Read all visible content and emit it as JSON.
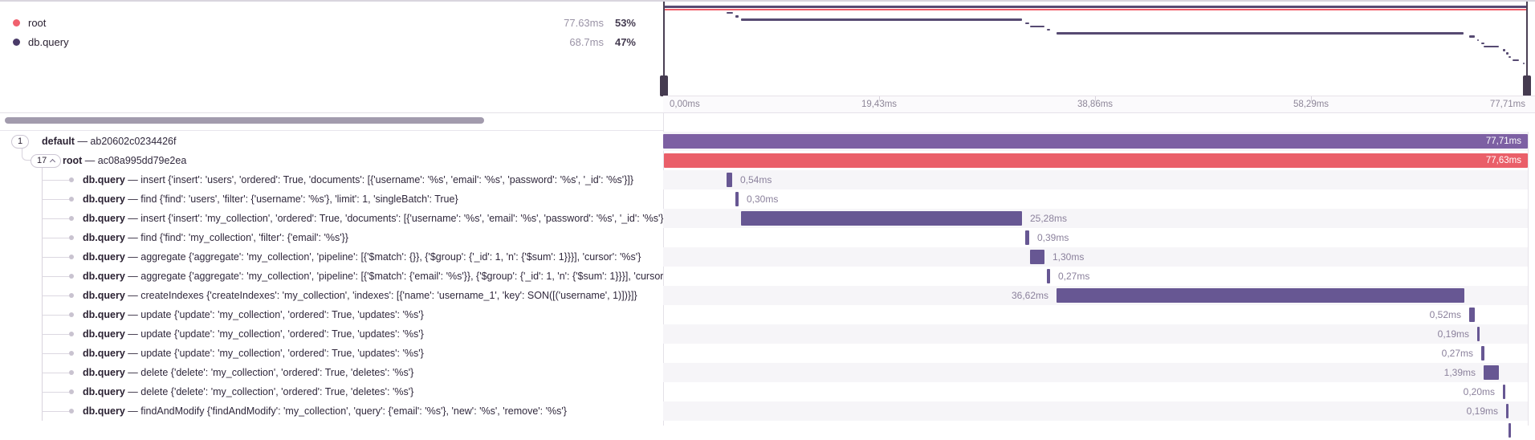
{
  "legend": {
    "items": [
      {
        "label": "root",
        "duration": "77.63ms",
        "percent": "53%",
        "color": "#f0616e"
      },
      {
        "label": "db.query",
        "duration": "68.7ms",
        "percent": "47%",
        "color": "#4a3b69"
      }
    ]
  },
  "axis": {
    "ticks": [
      {
        "label": "0,00ms"
      },
      {
        "label": "19,43ms"
      },
      {
        "label": "38,86ms"
      },
      {
        "label": "58,29ms"
      },
      {
        "label": "77,71ms"
      }
    ]
  },
  "trace": {
    "total_ms": 77.71,
    "separator": "—",
    "colors": {
      "transaction": "#7d60a3",
      "root": "#ea5f69",
      "span": "#675793",
      "mm_purple": "#564a72",
      "mm_red": "#ef5f6b"
    },
    "rows": [
      {
        "badge": "1",
        "name": "default",
        "detail": "ab20602c0234426f",
        "depth": 0,
        "start_ms": 0,
        "duration_ms": 77.71,
        "duration_label": "77,71ms",
        "kind": "transaction",
        "label_placement": "inside"
      },
      {
        "badge": "17",
        "badge_chevron": true,
        "name": "root",
        "detail": "ac08a995dd79e2ea",
        "depth": 1,
        "start_ms": 0.04,
        "duration_ms": 77.63,
        "duration_label": "77,63ms",
        "kind": "root",
        "label_placement": "inside"
      },
      {
        "name": "db.query",
        "detail": "insert {'insert': 'users', 'ordered': True, 'documents': [{'username': '%s', 'email': '%s', 'password': '%s', '_id': '%s'}]}",
        "depth": 2,
        "start_ms": 5.7,
        "duration_ms": 0.54,
        "duration_label": "0,54ms",
        "kind": "span",
        "label_placement": "right"
      },
      {
        "name": "db.query",
        "detail": "find {'find': 'users', 'filter': {'username': '%s'}, 'limit': 1, 'singleBatch': True}",
        "depth": 2,
        "start_ms": 6.49,
        "duration_ms": 0.3,
        "duration_label": "0,30ms",
        "kind": "span",
        "label_placement": "right"
      },
      {
        "name": "db.query",
        "detail": "insert {'insert': 'my_collection', 'ordered': True, 'documents': [{'username': '%s', 'email': '%s', 'password': '%s', '_id': '%s'}, {'username': '%s', 'email': '%s', 'password': '%s', '_id': '%s'}]}",
        "depth": 2,
        "start_ms": 7.0,
        "duration_ms": 25.28,
        "duration_label": "25,28ms",
        "kind": "span",
        "label_placement": "right"
      },
      {
        "name": "db.query",
        "detail": "find {'find': 'my_collection', 'filter': {'email': '%s'}}",
        "depth": 2,
        "start_ms": 32.54,
        "duration_ms": 0.39,
        "duration_label": "0,39ms",
        "kind": "span",
        "label_placement": "right"
      },
      {
        "name": "db.query",
        "detail": "aggregate {'aggregate': 'my_collection', 'pipeline': [{'$match': {}}, {'$group': {'_id': 1, 'n': {'$sum': 1}}}], 'cursor': '%s'}",
        "depth": 2,
        "start_ms": 32.97,
        "duration_ms": 1.3,
        "duration_label": "1,30ms",
        "kind": "span",
        "label_placement": "right"
      },
      {
        "name": "db.query",
        "detail": "aggregate {'aggregate': 'my_collection', 'pipeline': [{'$match': {'email': '%s'}}, {'$group': {'_id': 1, 'n': {'$sum': 1}}}], 'cursor': '%s'}",
        "depth": 2,
        "start_ms": 34.49,
        "duration_ms": 0.27,
        "duration_label": "0,27ms",
        "kind": "span",
        "label_placement": "right"
      },
      {
        "name": "db.query",
        "detail": "createIndexes {'createIndexes': 'my_collection', 'indexes': [{'name': 'username_1', 'key': SON([('username', 1)])}]}",
        "depth": 2,
        "start_ms": 35.35,
        "duration_ms": 36.62,
        "duration_label": "36,62ms",
        "kind": "span",
        "label_placement": "left"
      },
      {
        "name": "db.query",
        "detail": "update {'update': 'my_collection', 'ordered': True, 'updates': '%s'}",
        "depth": 2,
        "start_ms": 72.44,
        "duration_ms": 0.52,
        "duration_label": "0,52ms",
        "kind": "span",
        "label_placement": "left"
      },
      {
        "name": "db.query",
        "detail": "update {'update': 'my_collection', 'ordered': True, 'updates': '%s'}",
        "depth": 2,
        "start_ms": 73.16,
        "duration_ms": 0.19,
        "duration_label": "0,19ms",
        "kind": "span",
        "label_placement": "left"
      },
      {
        "name": "db.query",
        "detail": "update {'update': 'my_collection', 'ordered': True, 'updates': '%s'}",
        "depth": 2,
        "start_ms": 73.52,
        "duration_ms": 0.27,
        "duration_label": "0,27ms",
        "kind": "span",
        "label_placement": "left"
      },
      {
        "name": "db.query",
        "detail": "delete {'delete': 'my_collection', 'ordered': True, 'deletes': '%s'}",
        "depth": 2,
        "start_ms": 73.74,
        "duration_ms": 1.39,
        "duration_label": "1,39ms",
        "kind": "span",
        "label_placement": "left"
      },
      {
        "name": "db.query",
        "detail": "delete {'delete': 'my_collection', 'ordered': True, 'deletes': '%s'}",
        "depth": 2,
        "start_ms": 75.47,
        "duration_ms": 0.2,
        "duration_label": "0,20ms",
        "kind": "span",
        "label_placement": "left"
      },
      {
        "name": "db.query",
        "detail": "findAndModify {'findAndModify': 'my_collection', 'query': {'email': '%s'}, 'new': '%s', 'remove': '%s'}",
        "depth": 2,
        "start_ms": 75.76,
        "duration_ms": 0.19,
        "duration_label": "0,19ms",
        "kind": "span",
        "label_placement": "left"
      }
    ],
    "hidden_spans": [
      {
        "start_ms": 75.98,
        "duration_ms": 0.2
      },
      {
        "start_ms": 76.35,
        "duration_ms": 0.6
      },
      {
        "start_ms": 77.25,
        "duration_ms": 0.12
      }
    ]
  }
}
